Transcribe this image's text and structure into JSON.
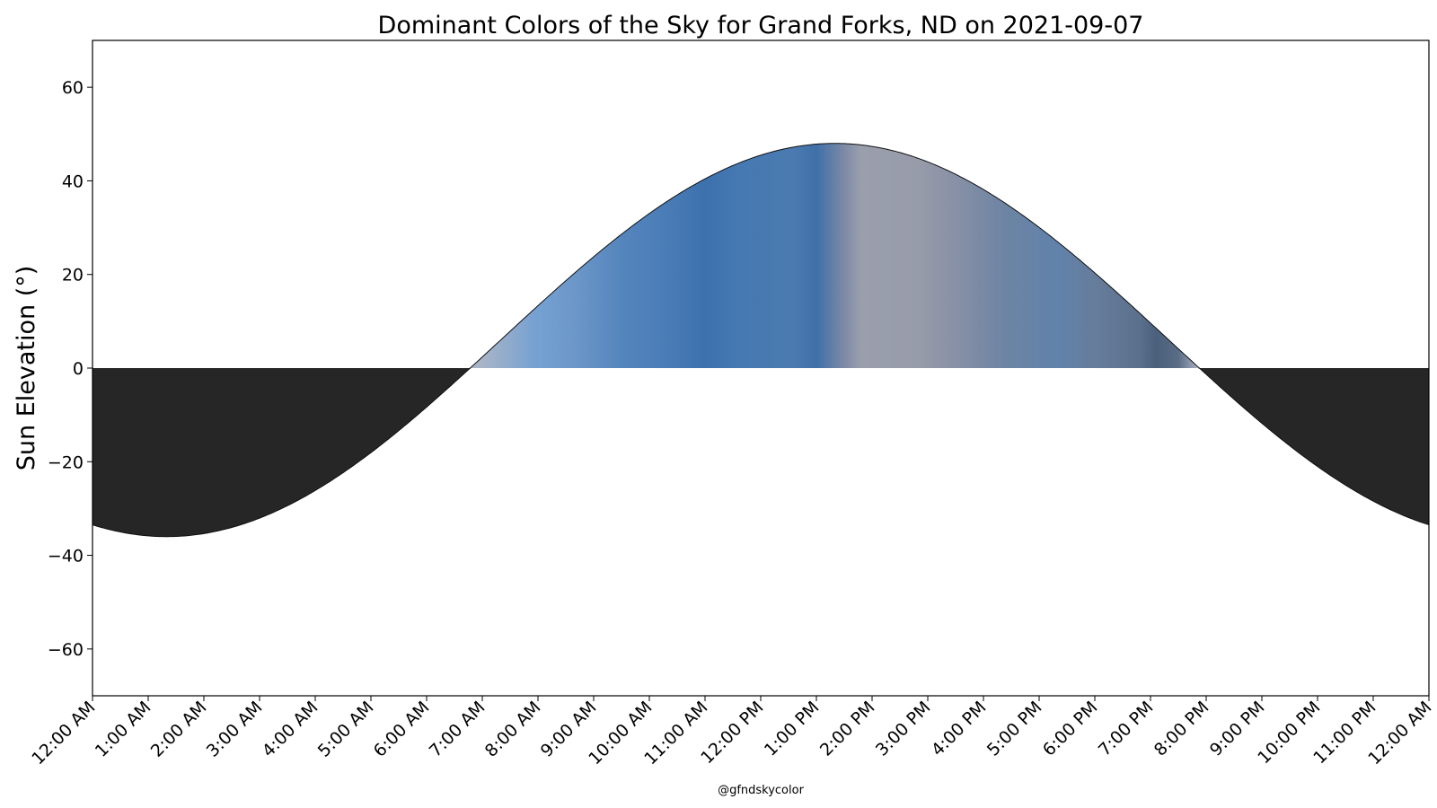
{
  "chart_data": {
    "type": "area",
    "title": "Dominant Colors of the Sky for Grand Forks, ND on 2021-09-07",
    "ylabel": "Sun Elevation (°)",
    "xlabel": "",
    "credit": "@gfndskycolor",
    "ylim": [
      -70,
      70
    ],
    "xlim_hours": [
      0,
      24
    ],
    "yticks": [
      60,
      40,
      20,
      0,
      -20,
      -40,
      -60
    ],
    "ytick_labels": [
      "60",
      "40",
      "20",
      "0",
      "−20",
      "−40",
      "−60"
    ],
    "xtick_labels": [
      "12:00 AM",
      "1:00 AM",
      "2:00 AM",
      "3:00 AM",
      "4:00 AM",
      "5:00 AM",
      "6:00 AM",
      "7:00 AM",
      "8:00 AM",
      "9:00 AM",
      "10:00 AM",
      "11:00 AM",
      "12:00 PM",
      "1:00 PM",
      "2:00 PM",
      "3:00 PM",
      "4:00 PM",
      "5:00 PM",
      "6:00 PM",
      "7:00 PM",
      "8:00 PM",
      "9:00 PM",
      "10:00 PM",
      "11:00 PM",
      "12:00 AM"
    ],
    "sun_elevation": {
      "solar_noon_hour": 13.33,
      "max_elevation": 48,
      "min_elevation": -36,
      "sunrise_hour": 7.0,
      "sunset_hour": 19.85
    },
    "night_color": "#262626",
    "sky_colors": [
      {
        "hour": 7.0,
        "color": "#a8b4c8"
      },
      {
        "hour": 8.0,
        "color": "#74a0d2"
      },
      {
        "hour": 8.7,
        "color": "#6b96c8"
      },
      {
        "hour": 9.5,
        "color": "#5585bd"
      },
      {
        "hour": 10.5,
        "color": "#477ab4"
      },
      {
        "hour": 11.0,
        "color": "#3c71ae"
      },
      {
        "hour": 11.6,
        "color": "#4679b2"
      },
      {
        "hour": 12.6,
        "color": "#4a7ab0"
      },
      {
        "hour": 13.0,
        "color": "#3f70a8"
      },
      {
        "hour": 13.5,
        "color": "#7d8aa6"
      },
      {
        "hour": 13.8,
        "color": "#9a9fac"
      },
      {
        "hour": 14.8,
        "color": "#989caa"
      },
      {
        "hour": 15.4,
        "color": "#8a92a6"
      },
      {
        "hour": 16.4,
        "color": "#6d84a3"
      },
      {
        "hour": 17.3,
        "color": "#6182ab"
      },
      {
        "hour": 18.0,
        "color": "#667d9b"
      },
      {
        "hour": 18.8,
        "color": "#5b708c"
      },
      {
        "hour": 19.1,
        "color": "#4a607c"
      },
      {
        "hour": 19.5,
        "color": "#5a6c86"
      },
      {
        "hour": 19.85,
        "color": "#a8b0c0"
      }
    ]
  }
}
